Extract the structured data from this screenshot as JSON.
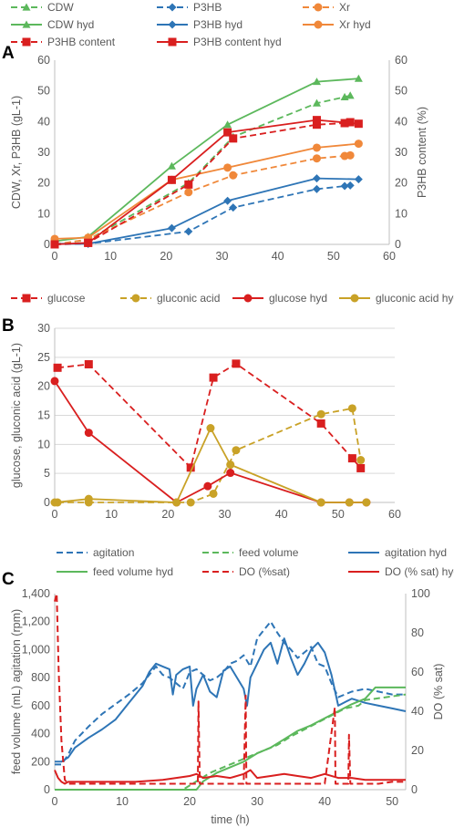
{
  "colors": {
    "green": "#5cb85c",
    "blue": "#2e75b6",
    "orange": "#f0883a",
    "red": "#d91f1f",
    "gold": "#c9a227"
  },
  "panels": {
    "a": "A",
    "b": "B",
    "c": "C"
  },
  "chart_data": [
    {
      "type": "line",
      "panel": "A",
      "ylabel": "CDW, Xr, P3HB (gL-1)",
      "y2label": "P3HB content (%)",
      "xlim": [
        0,
        60
      ],
      "ylim": [
        0,
        60
      ],
      "y2lim": [
        0,
        60
      ],
      "xticks": [
        "0",
        "10",
        "20",
        "30",
        "40",
        "50",
        "60"
      ],
      "yticks": [
        "0",
        "10",
        "20",
        "30",
        "40",
        "50",
        "60"
      ],
      "y2ticks": [
        "0",
        "10",
        "20",
        "30",
        "40",
        "50",
        "60"
      ],
      "legend": [
        "CDW",
        "P3HB",
        "Xr",
        "CDW hyd",
        "P3HB hyd",
        "Xr hyd",
        "P3HB content",
        "P3HB content hyd"
      ],
      "series": [
        {
          "name": "CDW",
          "style": "dashed",
          "color": "green",
          "marker": "triangle",
          "x": [
            0,
            6,
            24,
            32,
            47,
            52,
            53
          ],
          "y": [
            0,
            1.5,
            20,
            35,
            46,
            48,
            48.5
          ]
        },
        {
          "name": "P3HB",
          "style": "dashed",
          "color": "blue",
          "marker": "diamond",
          "x": [
            0,
            6,
            24,
            32,
            47,
            52,
            53
          ],
          "y": [
            0,
            0.2,
            4.2,
            12,
            18,
            19,
            19.2
          ]
        },
        {
          "name": "Xr",
          "style": "dashed",
          "color": "orange",
          "marker": "circle",
          "x": [
            0,
            6,
            24,
            32,
            47,
            52,
            53
          ],
          "y": [
            0,
            1.6,
            17,
            22.5,
            28,
            28.8,
            29
          ]
        },
        {
          "name": "CDW hyd",
          "style": "solid",
          "color": "green",
          "marker": "triangle",
          "x": [
            0,
            6,
            21,
            31,
            47,
            54.5
          ],
          "y": [
            1,
            2.5,
            25.5,
            39,
            53,
            54
          ]
        },
        {
          "name": "P3HB hyd",
          "style": "solid",
          "color": "blue",
          "marker": "diamond",
          "x": [
            0,
            6,
            21,
            31,
            47,
            54.5
          ],
          "y": [
            0.2,
            0.2,
            5.3,
            14.2,
            21.5,
            21.2
          ]
        },
        {
          "name": "Xr hyd",
          "style": "solid",
          "color": "orange",
          "marker": "circle",
          "x": [
            0,
            6,
            21,
            31,
            47,
            54.5
          ],
          "y": [
            1.8,
            2.2,
            21,
            25,
            31.5,
            32.8
          ]
        },
        {
          "name": "P3HB content",
          "style": "dashed",
          "color": "red",
          "marker": "square",
          "axis": "y2",
          "x": [
            0,
            6,
            24,
            32,
            47,
            52,
            53
          ],
          "y": [
            0,
            0.5,
            19.5,
            34.5,
            39,
            39.5,
            39.8
          ]
        },
        {
          "name": "P3HB content hyd",
          "style": "solid",
          "color": "red",
          "marker": "square",
          "axis": "y2",
          "x": [
            0,
            6,
            21,
            31,
            47,
            54.5
          ],
          "y": [
            0,
            0.5,
            21,
            36.5,
            40.5,
            39.3
          ]
        }
      ]
    },
    {
      "type": "line",
      "panel": "B",
      "ylabel": "glucose, gluconic acid (gL-1)",
      "xlim": [
        0,
        60
      ],
      "ylim": [
        0,
        30
      ],
      "xticks": [
        "0",
        "10",
        "20",
        "30",
        "40",
        "50",
        "60"
      ],
      "yticks": [
        "0",
        "5",
        "10",
        "15",
        "20",
        "25",
        "30"
      ],
      "legend": [
        "glucose",
        "gluconic acid",
        "glucose hyd",
        "gluconic acid hyd"
      ],
      "series": [
        {
          "name": "glucose",
          "style": "dashed",
          "color": "red",
          "marker": "square",
          "x": [
            0.5,
            6,
            24,
            28,
            32,
            47,
            52.5,
            54
          ],
          "y": [
            23.2,
            23.8,
            6,
            21.5,
            23.9,
            13.6,
            7.6,
            5.9
          ]
        },
        {
          "name": "gluconic acid",
          "style": "dashed",
          "color": "gold",
          "marker": "circle",
          "x": [
            0.5,
            6,
            24,
            28,
            32,
            47,
            52.5,
            54
          ],
          "y": [
            0,
            0,
            0,
            1.5,
            9,
            15.2,
            16.2,
            7.3
          ]
        },
        {
          "name": "glucose hyd",
          "style": "solid",
          "color": "red",
          "marker": "circle",
          "x": [
            0,
            6,
            21.5,
            27,
            31,
            47,
            52,
            55
          ],
          "y": [
            20.9,
            12,
            0,
            2.8,
            5.1,
            0,
            0,
            0
          ]
        },
        {
          "name": "gluconic acid hyd",
          "style": "solid",
          "color": "gold",
          "marker": "circle",
          "x": [
            0,
            6,
            21.5,
            27.5,
            31,
            47,
            52,
            55
          ],
          "y": [
            0,
            0.6,
            0,
            12.8,
            6.5,
            0,
            0,
            0
          ]
        }
      ]
    },
    {
      "type": "line",
      "panel": "C",
      "ylabel": "feed volume (mL) agitation (rpm)",
      "y2label": "DO (% sat)",
      "xlabel": "time (h)",
      "xlim": [
        0,
        52
      ],
      "ylim": [
        0,
        1400
      ],
      "y2lim": [
        0,
        100
      ],
      "xticks": [
        "0",
        "10",
        "20",
        "30",
        "40",
        "50"
      ],
      "yticks": [
        "0",
        "200",
        "400",
        "600",
        "800",
        "1,000",
        "1,200",
        "1,400"
      ],
      "y2ticks": [
        "0",
        "20",
        "40",
        "60",
        "80",
        "100"
      ],
      "legend": [
        "agitation",
        "feed volume",
        "agitation hyd",
        "feed volume hyd",
        "DO  (%sat)",
        "DO (% sat) hyd"
      ],
      "series": [
        {
          "name": "agitation",
          "style": "dashed",
          "color": "blue",
          "x": [
            0,
            1,
            2,
            3,
            5,
            7,
            9,
            11,
            13,
            15,
            16,
            17,
            18,
            19,
            20,
            21,
            22,
            23,
            24,
            25,
            26,
            27,
            28,
            29,
            30,
            31,
            32,
            33,
            34,
            35,
            36,
            37,
            38,
            39,
            40,
            41,
            42,
            44,
            46,
            48,
            50,
            52
          ],
          "y": [
            180,
            180,
            250,
            350,
            450,
            540,
            610,
            680,
            760,
            880,
            820,
            800,
            760,
            720,
            840,
            860,
            820,
            780,
            800,
            840,
            900,
            920,
            960,
            880,
            1080,
            1140,
            1200,
            1120,
            1050,
            1000,
            940,
            980,
            1020,
            900,
            880,
            760,
            660,
            700,
            720,
            700,
            680,
            680
          ]
        },
        {
          "name": "feed volume",
          "style": "dashed",
          "color": "green",
          "x": [
            0,
            19,
            21,
            23,
            25,
            27,
            29,
            31,
            33,
            35,
            37,
            39,
            41,
            43,
            45,
            46,
            47.5,
            52
          ],
          "y": [
            0,
            0,
            60,
            120,
            160,
            200,
            240,
            280,
            320,
            380,
            430,
            480,
            530,
            580,
            600,
            640,
            650,
            680
          ]
        },
        {
          "name": "agitation hyd",
          "style": "solid",
          "color": "blue",
          "x": [
            0,
            1,
            2,
            3,
            5,
            7,
            9,
            11,
            13,
            14,
            15,
            16,
            17,
            17.5,
            18,
            19,
            20,
            20.5,
            21,
            22,
            23,
            24,
            25,
            26,
            27,
            28,
            28.5,
            29,
            30,
            31,
            32,
            33,
            34,
            35,
            36,
            37,
            38,
            39,
            40,
            41,
            42,
            44,
            46,
            48,
            50,
            52
          ],
          "y": [
            200,
            200,
            230,
            300,
            370,
            430,
            500,
            620,
            740,
            840,
            900,
            880,
            860,
            680,
            820,
            860,
            880,
            600,
            720,
            820,
            700,
            660,
            850,
            880,
            800,
            720,
            600,
            800,
            900,
            1000,
            1050,
            900,
            1080,
            940,
            820,
            900,
            1000,
            1050,
            980,
            820,
            600,
            650,
            620,
            600,
            580,
            560
          ]
        },
        {
          "name": "feed volume hyd",
          "style": "solid",
          "color": "green",
          "x": [
            0,
            21,
            22,
            24,
            26,
            28,
            30,
            32,
            34,
            36,
            38,
            40,
            42,
            44,
            46,
            47.5,
            52
          ],
          "y": [
            0,
            0,
            60,
            120,
            160,
            200,
            260,
            300,
            360,
            420,
            460,
            510,
            560,
            610,
            650,
            730,
            730
          ]
        },
        {
          "name": "DO  (%sat)",
          "style": "dashed",
          "color": "red",
          "axis": "y2",
          "x": [
            0,
            0.3,
            0.6,
            1,
            1.5,
            2,
            4,
            8,
            12,
            16,
            20,
            21.2,
            21.3,
            21.5,
            24,
            28,
            28.3,
            28.4,
            28.6,
            32,
            36,
            40,
            41.5,
            41.6,
            41.8,
            43.5,
            43.6,
            43.8,
            46,
            48,
            50,
            52
          ],
          "y": [
            96,
            100,
            60,
            25,
            5,
            3,
            3,
            3,
            3,
            3,
            3,
            3,
            45,
            3,
            3,
            3,
            48,
            3,
            3,
            3,
            3,
            3,
            42,
            3,
            3,
            3,
            28,
            3,
            3,
            3,
            4,
            4
          ]
        },
        {
          "name": "DO (% sat) hyd",
          "style": "solid",
          "color": "red",
          "axis": "y2",
          "x": [
            0,
            0.5,
            1,
            1.5,
            2,
            4,
            8,
            12,
            16,
            18,
            20,
            21,
            22,
            24,
            26,
            28,
            29,
            30,
            32,
            34,
            36,
            38,
            40,
            42,
            44,
            46,
            48,
            50,
            52
          ],
          "y": [
            10,
            6,
            4,
            3,
            4,
            4,
            4,
            4,
            5,
            6,
            7,
            8,
            6,
            7,
            6,
            8,
            10,
            6,
            7,
            8,
            7,
            6,
            8,
            6,
            6,
            5,
            5,
            5,
            5
          ]
        }
      ]
    }
  ]
}
